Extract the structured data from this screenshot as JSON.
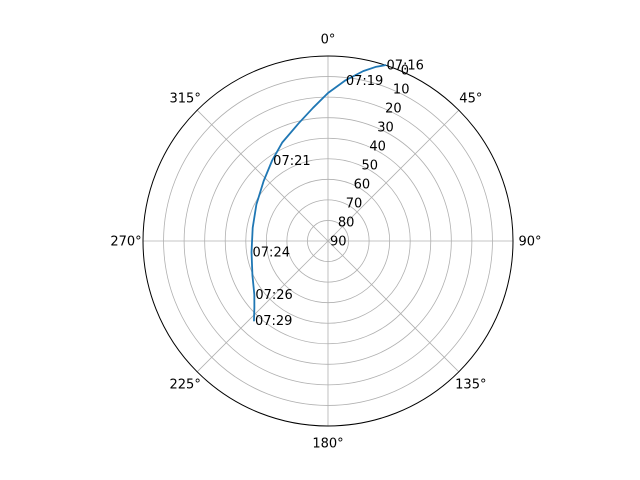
{
  "chart_data": {
    "type": "line",
    "projection": "polar",
    "theta_direction": "clockwise",
    "theta_zero": "top",
    "r_axis_inverted": true,
    "rlim": [
      90,
      0
    ],
    "theta_ticks": [
      {
        "deg": 0,
        "label": "0°"
      },
      {
        "deg": 45,
        "label": "45°"
      },
      {
        "deg": 90,
        "label": "90°"
      },
      {
        "deg": 135,
        "label": "135°"
      },
      {
        "deg": 180,
        "label": "180°"
      },
      {
        "deg": 225,
        "label": "225°"
      },
      {
        "deg": 270,
        "label": "270°"
      },
      {
        "deg": 315,
        "label": "315°"
      }
    ],
    "r_ticks": [
      0,
      10,
      20,
      30,
      40,
      50,
      60,
      70,
      80,
      90
    ],
    "grid": true,
    "series": [
      {
        "color": "#1f77b4",
        "points": [
          {
            "azimuth": 18.1,
            "elevation": 0
          },
          {
            "azimuth": 15.3,
            "elevation": 2.2
          },
          {
            "azimuth": 11.7,
            "elevation": 5.6
          },
          {
            "azimuth": 6.0,
            "elevation": 11.6
          },
          {
            "azimuth": 0.0,
            "elevation": 18.0
          },
          {
            "azimuth": -6.4,
            "elevation": 24.8
          },
          {
            "azimuth": -14.0,
            "elevation": 31.0
          },
          {
            "azimuth": -25.0,
            "elevation": 37.2
          },
          {
            "azimuth": -34.7,
            "elevation": 42.3
          },
          {
            "azimuth": -47.0,
            "elevation": 47.2
          },
          {
            "azimuth": -63.0,
            "elevation": 50.9
          },
          {
            "azimuth": -80.0,
            "elevation": 52.8
          },
          {
            "azimuth": -98.3,
            "elevation": 52.4
          },
          {
            "azimuth": -114.5,
            "elevation": 49.6
          },
          {
            "azimuth": -126.0,
            "elevation": 45.7
          },
          {
            "azimuth": -132.0,
            "elevation": 41.8
          },
          {
            "azimuth": -137.1,
            "elevation": 37.1
          }
        ]
      }
    ],
    "time_labels": [
      {
        "text": "07:16",
        "azimuth": 18.1,
        "elevation": 0
      },
      {
        "text": "07:19",
        "azimuth": 6.0,
        "elevation": 11.6
      },
      {
        "text": "07:21",
        "azimuth": -34.7,
        "elevation": 42.3
      },
      {
        "text": "07:24",
        "azimuth": -98.3,
        "elevation": 52.4
      },
      {
        "text": "07:26",
        "azimuth": -126.0,
        "elevation": 45.7
      },
      {
        "text": "07:29",
        "azimuth": -137.1,
        "elevation": 37.1
      }
    ]
  }
}
